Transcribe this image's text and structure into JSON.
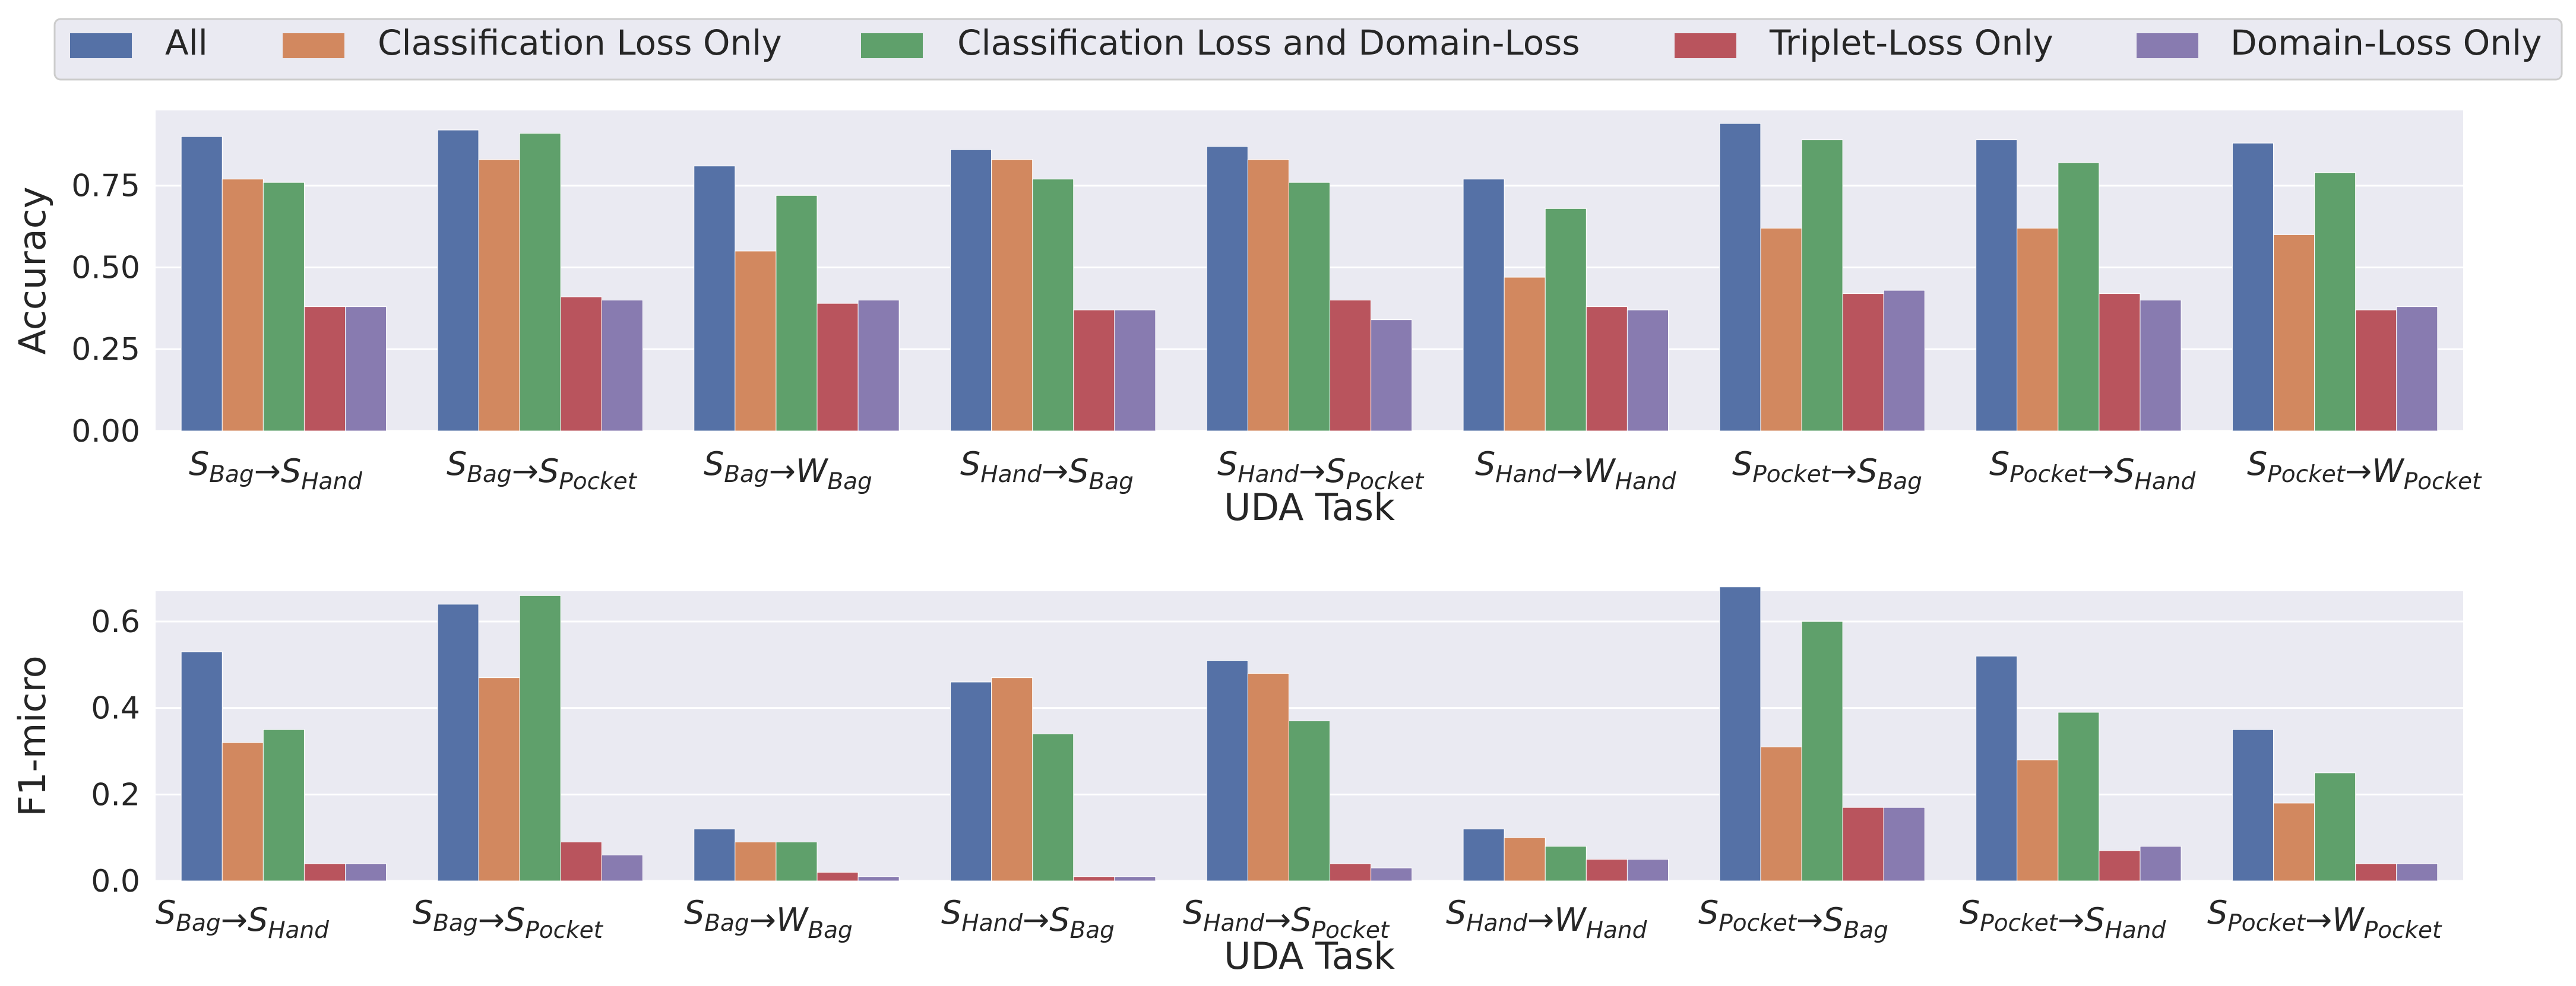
{
  "legend": {
    "placement": "top",
    "items": [
      {
        "label": "All",
        "color": "#5571a6"
      },
      {
        "label": "Classification Loss Only",
        "color": "#d2885f"
      },
      {
        "label": "Classification Loss and Domain-Loss",
        "color": "#5fa06b"
      },
      {
        "label": "Triplet-Loss Only",
        "color": "#b9545d"
      },
      {
        "label": "Domain-Loss Only",
        "color": "#887bb0"
      }
    ]
  },
  "chart_data": [
    {
      "type": "bar",
      "xlabel": "UDA Task",
      "ylabel": "Accuracy",
      "ylim": [
        0,
        0.98
      ],
      "yticks": [
        "0.00",
        "0.25",
        "0.50",
        "0.75"
      ],
      "grid": true,
      "categories": [
        {
          "parts": [
            [
              "S",
              "Bag"
            ],
            [
              "→",
              ""
            ],
            [
              "S",
              "Hand"
            ]
          ]
        },
        {
          "parts": [
            [
              "S",
              "Bag"
            ],
            [
              "→",
              ""
            ],
            [
              "S",
              "Pocket"
            ]
          ]
        },
        {
          "parts": [
            [
              "S",
              "Bag"
            ],
            [
              "→",
              ""
            ],
            [
              "W",
              "Bag"
            ]
          ]
        },
        {
          "parts": [
            [
              "S",
              "Hand"
            ],
            [
              "→",
              ""
            ],
            [
              "S",
              "Bag"
            ]
          ]
        },
        {
          "parts": [
            [
              "S",
              "Hand"
            ],
            [
              "→",
              ""
            ],
            [
              "S",
              "Pocket"
            ]
          ]
        },
        {
          "parts": [
            [
              "S",
              "Hand"
            ],
            [
              "→",
              ""
            ],
            [
              "W",
              "Hand"
            ]
          ]
        },
        {
          "parts": [
            [
              "S",
              "Pocket"
            ],
            [
              "→",
              ""
            ],
            [
              "S",
              "Bag"
            ]
          ]
        },
        {
          "parts": [
            [
              "S",
              "Pocket"
            ],
            [
              "→",
              ""
            ],
            [
              "S",
              "Hand"
            ]
          ]
        },
        {
          "parts": [
            [
              "S",
              "Pocket"
            ],
            [
              "→",
              ""
            ],
            [
              "W",
              "Pocket"
            ]
          ]
        }
      ],
      "series": [
        {
          "name": "All",
          "values": [
            0.9,
            0.92,
            0.81,
            0.86,
            0.87,
            0.77,
            0.94,
            0.89,
            0.88
          ]
        },
        {
          "name": "Classification Loss Only",
          "values": [
            0.77,
            0.83,
            0.55,
            0.83,
            0.83,
            0.47,
            0.62,
            0.62,
            0.6
          ]
        },
        {
          "name": "Classification Loss and Domain-Loss",
          "values": [
            0.76,
            0.91,
            0.72,
            0.77,
            0.76,
            0.68,
            0.89,
            0.82,
            0.79
          ]
        },
        {
          "name": "Triplet-Loss Only",
          "values": [
            0.38,
            0.41,
            0.39,
            0.37,
            0.4,
            0.38,
            0.42,
            0.42,
            0.37
          ]
        },
        {
          "name": "Domain-Loss Only",
          "values": [
            0.38,
            0.4,
            0.4,
            0.37,
            0.34,
            0.37,
            0.43,
            0.4,
            0.38
          ]
        }
      ]
    },
    {
      "type": "bar",
      "xlabel": "UDA Task",
      "ylabel": "F1-micro",
      "ylim": [
        0,
        0.67
      ],
      "yticks": [
        "0.0",
        "0.2",
        "0.4",
        "0.6"
      ],
      "grid": true,
      "categories": [
        {
          "parts": [
            [
              "S",
              "Bag"
            ],
            [
              "→",
              ""
            ],
            [
              "S",
              "Hand"
            ]
          ]
        },
        {
          "parts": [
            [
              "S",
              "Bag"
            ],
            [
              "→",
              ""
            ],
            [
              "S",
              "Pocket"
            ]
          ]
        },
        {
          "parts": [
            [
              "S",
              "Bag"
            ],
            [
              "→",
              ""
            ],
            [
              "W",
              "Bag"
            ]
          ]
        },
        {
          "parts": [
            [
              "S",
              "Hand"
            ],
            [
              "→",
              ""
            ],
            [
              "S",
              "Bag"
            ]
          ]
        },
        {
          "parts": [
            [
              "S",
              "Hand"
            ],
            [
              "→",
              ""
            ],
            [
              "S",
              "Pocket"
            ]
          ]
        },
        {
          "parts": [
            [
              "S",
              "Hand"
            ],
            [
              "→",
              ""
            ],
            [
              "W",
              "Hand"
            ]
          ]
        },
        {
          "parts": [
            [
              "S",
              "Pocket"
            ],
            [
              "→",
              ""
            ],
            [
              "S",
              "Bag"
            ]
          ]
        },
        {
          "parts": [
            [
              "S",
              "Pocket"
            ],
            [
              "→",
              ""
            ],
            [
              "S",
              "Hand"
            ]
          ]
        },
        {
          "parts": [
            [
              "S",
              "Pocket"
            ],
            [
              "→",
              ""
            ],
            [
              "W",
              "Pocket"
            ]
          ]
        }
      ],
      "series": [
        {
          "name": "All",
          "values": [
            0.53,
            0.64,
            0.12,
            0.46,
            0.51,
            0.12,
            0.68,
            0.52,
            0.35
          ]
        },
        {
          "name": "Classification Loss Only",
          "values": [
            0.32,
            0.47,
            0.09,
            0.47,
            0.48,
            0.1,
            0.31,
            0.28,
            0.18
          ]
        },
        {
          "name": "Classification Loss and Domain-Loss",
          "values": [
            0.35,
            0.66,
            0.09,
            0.34,
            0.37,
            0.08,
            0.6,
            0.39,
            0.25
          ]
        },
        {
          "name": "Triplet-Loss Only",
          "values": [
            0.04,
            0.09,
            0.02,
            0.01,
            0.04,
            0.05,
            0.17,
            0.07,
            0.04
          ]
        },
        {
          "name": "Domain-Loss Only",
          "values": [
            0.04,
            0.06,
            0.01,
            0.01,
            0.03,
            0.05,
            0.17,
            0.08,
            0.04
          ]
        }
      ]
    }
  ]
}
